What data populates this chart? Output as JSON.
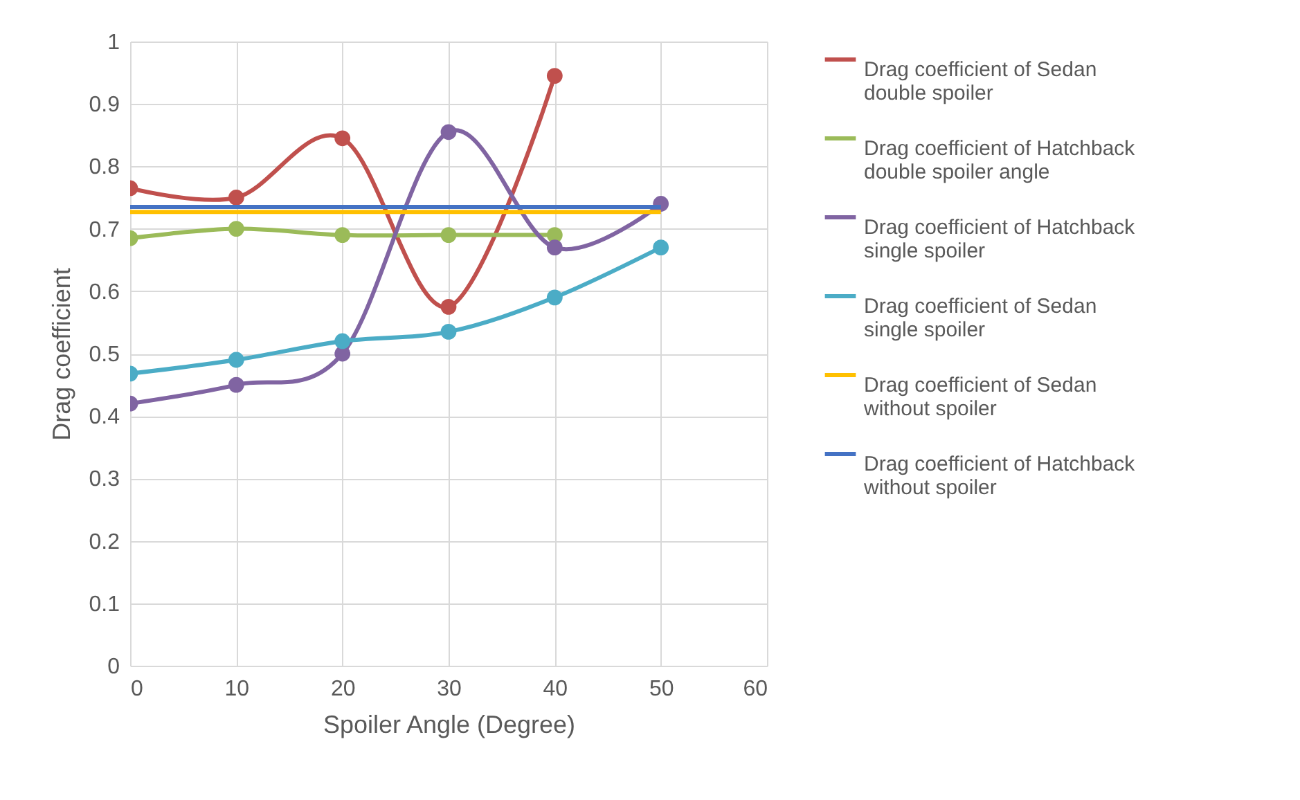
{
  "chart_data": {
    "type": "line",
    "xlabel": "Spoiler Angle (Degree)",
    "ylabel": "Drag coefficient",
    "x": [
      0,
      10,
      20,
      30,
      40,
      50
    ],
    "series": [
      {
        "name": "Drag coefficient of  Sedan double spoiler",
        "color": "#c0504d",
        "values": [
          0.765,
          0.75,
          0.845,
          0.575,
          0.945,
          null
        ]
      },
      {
        "name": "Drag coefficient of Hatchback double spoiler angle",
        "color": "#9bbb59",
        "values": [
          0.685,
          0.7,
          0.69,
          0.69,
          0.69,
          null
        ]
      },
      {
        "name": "Drag coefficient of Hatchback single spoiler",
        "color": "#8064a2",
        "values": [
          0.42,
          0.45,
          0.5,
          0.855,
          0.67,
          0.74
        ]
      },
      {
        "name": "Drag coefficient of Sedan single spoiler",
        "color": "#4bacc6",
        "values": [
          0.468,
          0.49,
          0.52,
          0.535,
          0.59,
          0.67
        ]
      },
      {
        "name": "Drag coefficient of Sedan without  spoiler",
        "color": "#ffc000",
        "marker": "none",
        "values": [
          0.727,
          0.727,
          0.727,
          0.727,
          0.727,
          0.727
        ]
      },
      {
        "name": "Drag coefficient of Hatchback without  spoiler",
        "color": "#4472c4",
        "marker": "none",
        "values": [
          0.735,
          0.735,
          0.735,
          0.735,
          0.735,
          0.735
        ]
      }
    ],
    "xlim": [
      0,
      60
    ],
    "xticks": [
      0,
      10,
      20,
      30,
      40,
      50,
      60
    ],
    "ylim": [
      0,
      1
    ],
    "yticks": [
      0,
      0.1,
      0.2,
      0.3,
      0.4,
      0.5,
      0.6,
      0.7,
      0.8,
      0.9,
      1
    ],
    "grid": true,
    "legend": "right",
    "marker": "circle"
  }
}
